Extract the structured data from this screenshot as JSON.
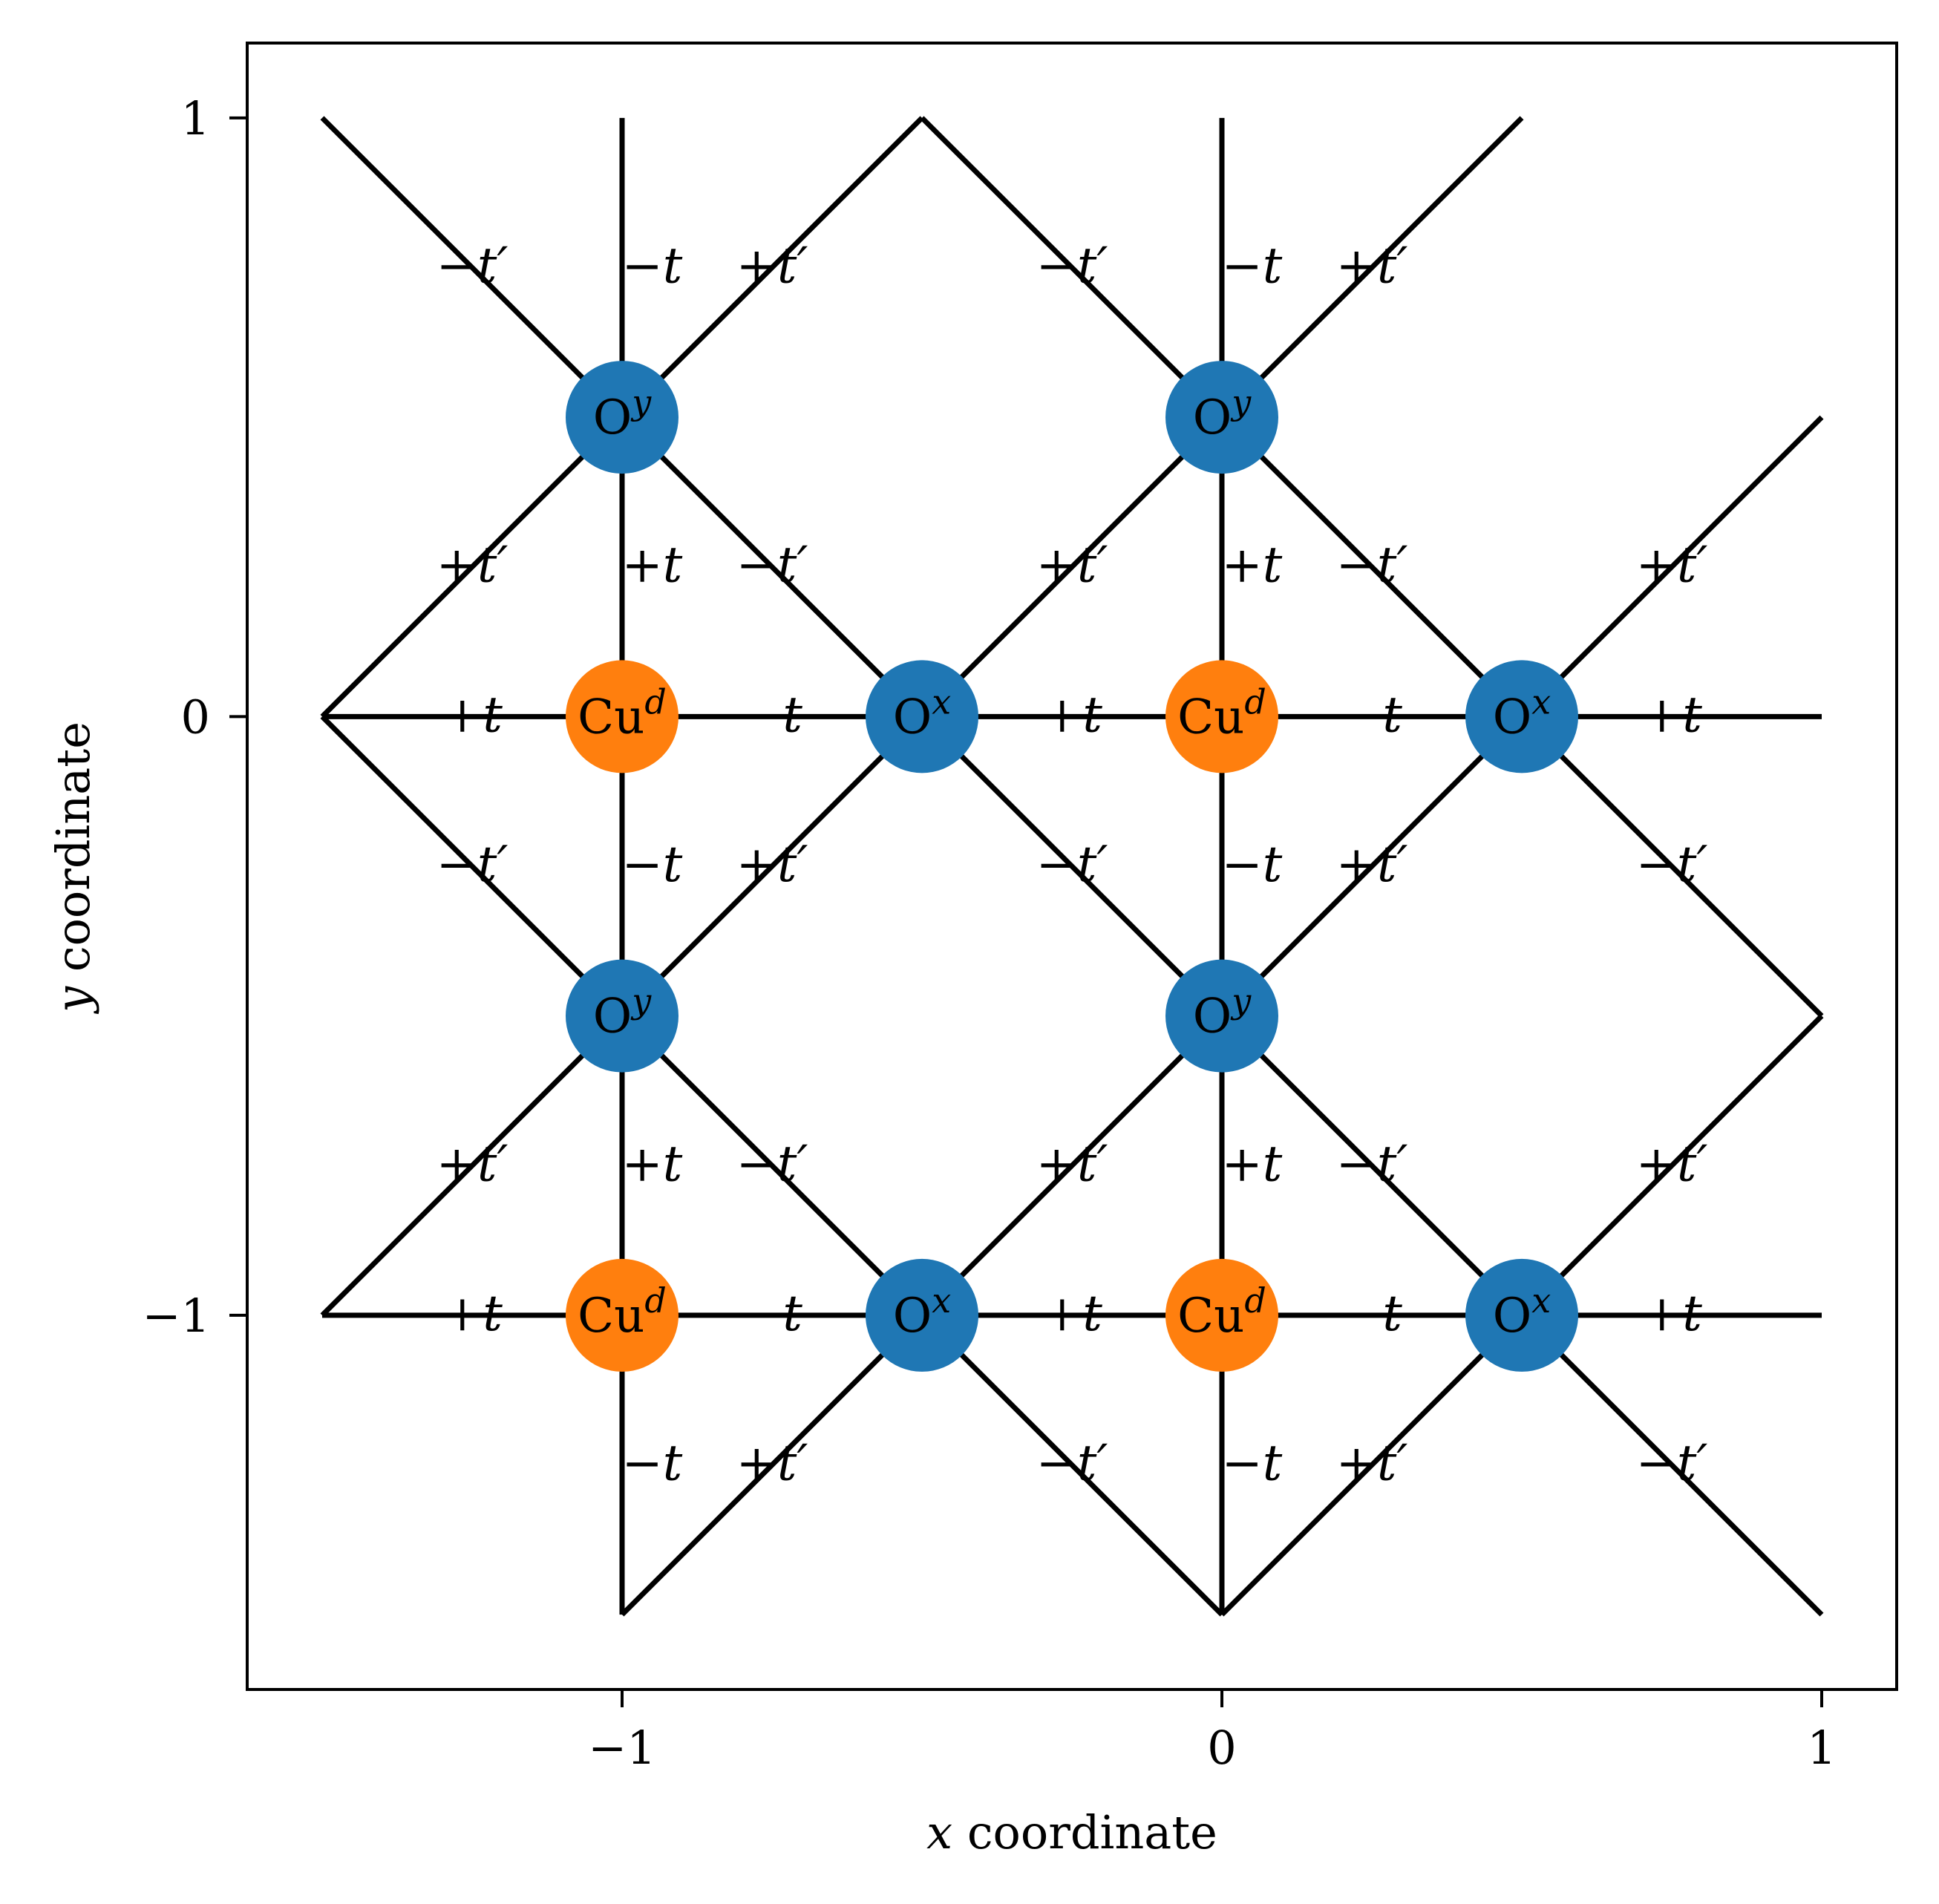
{
  "chart_data": {
    "type": "diagram",
    "xlabel_var": "x",
    "xlabel_text": " coordinate",
    "ylabel_var": "y",
    "ylabel_text": " coordinate",
    "xlim": [
      -1.625,
      1.125
    ],
    "ylim": [
      -1.625,
      1.125
    ],
    "xticks": [
      {
        "value": -1,
        "label": "−1"
      },
      {
        "value": 0,
        "label": "0"
      },
      {
        "value": 1,
        "label": "1"
      }
    ],
    "yticks": [
      {
        "value": 1,
        "label": "1"
      },
      {
        "value": 0,
        "label": "0"
      },
      {
        "value": -1,
        "label": "−1"
      }
    ],
    "line_color": "#000000",
    "node_colors": {
      "Cu": "#ff7f0e",
      "O": "#1f77b4"
    },
    "bonds": [
      [
        [
          -1.5,
          1.0
        ],
        [
          -1.0,
          0.5
        ]
      ],
      [
        [
          -1.0,
          1.0
        ],
        [
          -1.0,
          -1.5
        ]
      ],
      [
        [
          -1.0,
          0.5
        ],
        [
          -0.5,
          1.0
        ]
      ],
      [
        [
          -0.5,
          1.0
        ],
        [
          0.0,
          0.5
        ]
      ],
      [
        [
          0.0,
          1.0
        ],
        [
          0.0,
          -1.5
        ]
      ],
      [
        [
          0.0,
          0.5
        ],
        [
          0.5,
          1.0
        ]
      ],
      [
        [
          -1.5,
          0.0
        ],
        [
          1.0,
          0.0
        ]
      ],
      [
        [
          -1.5,
          -1.0
        ],
        [
          1.0,
          -1.0
        ]
      ],
      [
        [
          -1.5,
          0.0
        ],
        [
          -1.0,
          0.5
        ]
      ],
      [
        [
          -1.0,
          0.5
        ],
        [
          -0.5,
          0.0
        ]
      ],
      [
        [
          -0.5,
          0.0
        ],
        [
          0.0,
          0.5
        ]
      ],
      [
        [
          0.0,
          0.5
        ],
        [
          0.5,
          0.0
        ]
      ],
      [
        [
          0.5,
          0.0
        ],
        [
          1.0,
          0.5
        ]
      ],
      [
        [
          -1.5,
          0.0
        ],
        [
          -1.0,
          -0.5
        ]
      ],
      [
        [
          -1.0,
          -0.5
        ],
        [
          -0.5,
          0.0
        ]
      ],
      [
        [
          -0.5,
          0.0
        ],
        [
          0.0,
          -0.5
        ]
      ],
      [
        [
          0.0,
          -0.5
        ],
        [
          0.5,
          0.0
        ]
      ],
      [
        [
          0.5,
          0.0
        ],
        [
          1.0,
          -0.5
        ]
      ],
      [
        [
          -1.5,
          -1.0
        ],
        [
          -1.0,
          -0.5
        ]
      ],
      [
        [
          -1.0,
          -0.5
        ],
        [
          -0.5,
          -1.0
        ]
      ],
      [
        [
          -0.5,
          -1.0
        ],
        [
          0.0,
          -0.5
        ]
      ],
      [
        [
          0.0,
          -0.5
        ],
        [
          0.5,
          -1.0
        ]
      ],
      [
        [
          0.5,
          -1.0
        ],
        [
          1.0,
          -0.5
        ]
      ],
      [
        [
          -1.0,
          -1.5
        ],
        [
          -0.5,
          -1.0
        ]
      ],
      [
        [
          -0.5,
          -1.0
        ],
        [
          0.0,
          -1.5
        ]
      ],
      [
        [
          0.0,
          -1.5
        ],
        [
          0.5,
          -1.0
        ]
      ],
      [
        [
          0.5,
          -1.0
        ],
        [
          1.0,
          -1.5
        ]
      ]
    ],
    "nodes": [
      {
        "x": -1.0,
        "y": 0.5,
        "kind": "O",
        "base": "O",
        "sup": "y"
      },
      {
        "x": 0.0,
        "y": 0.5,
        "kind": "O",
        "base": "O",
        "sup": "y"
      },
      {
        "x": -1.0,
        "y": 0.0,
        "kind": "Cu",
        "base": "Cu",
        "sup": "d"
      },
      {
        "x": -0.5,
        "y": 0.0,
        "kind": "O",
        "base": "O",
        "sup": "x"
      },
      {
        "x": 0.0,
        "y": 0.0,
        "kind": "Cu",
        "base": "Cu",
        "sup": "d"
      },
      {
        "x": 0.5,
        "y": 0.0,
        "kind": "O",
        "base": "O",
        "sup": "x"
      },
      {
        "x": -1.0,
        "y": -0.5,
        "kind": "O",
        "base": "O",
        "sup": "y"
      },
      {
        "x": 0.0,
        "y": -0.5,
        "kind": "O",
        "base": "O",
        "sup": "y"
      },
      {
        "x": -1.0,
        "y": -1.0,
        "kind": "Cu",
        "base": "Cu",
        "sup": "d"
      },
      {
        "x": -0.5,
        "y": -1.0,
        "kind": "O",
        "base": "O",
        "sup": "x"
      },
      {
        "x": 0.0,
        "y": -1.0,
        "kind": "Cu",
        "base": "Cu",
        "sup": "d"
      },
      {
        "x": 0.5,
        "y": -1.0,
        "kind": "O",
        "base": "O",
        "sup": "x"
      }
    ],
    "hopping_labels": [
      {
        "x": -1.25,
        "y": 0.75,
        "sign": "−",
        "sym": "t′"
      },
      {
        "x": -0.95,
        "y": 0.75,
        "sign": "−",
        "sym": "t"
      },
      {
        "x": -0.75,
        "y": 0.75,
        "sign": "+",
        "sym": "t′"
      },
      {
        "x": -0.25,
        "y": 0.75,
        "sign": "−",
        "sym": "t′"
      },
      {
        "x": 0.05,
        "y": 0.75,
        "sign": "−",
        "sym": "t"
      },
      {
        "x": 0.25,
        "y": 0.75,
        "sign": "+",
        "sym": "t′"
      },
      {
        "x": -1.25,
        "y": 0.25,
        "sign": "+",
        "sym": "t′"
      },
      {
        "x": -0.95,
        "y": 0.25,
        "sign": "+",
        "sym": "t"
      },
      {
        "x": -0.75,
        "y": 0.25,
        "sign": "−",
        "sym": "t′"
      },
      {
        "x": -0.25,
        "y": 0.25,
        "sign": "+",
        "sym": "t′"
      },
      {
        "x": 0.05,
        "y": 0.25,
        "sign": "+",
        "sym": "t"
      },
      {
        "x": 0.25,
        "y": 0.25,
        "sign": "−",
        "sym": "t′"
      },
      {
        "x": 0.75,
        "y": 0.25,
        "sign": "+",
        "sym": "t′"
      },
      {
        "x": -1.25,
        "y": 0.0,
        "sign": "+",
        "sym": "t"
      },
      {
        "x": -0.75,
        "y": 0.0,
        "sign": "−",
        "sym": "t"
      },
      {
        "x": -0.25,
        "y": 0.0,
        "sign": "+",
        "sym": "t"
      },
      {
        "x": 0.25,
        "y": 0.0,
        "sign": "−",
        "sym": "t"
      },
      {
        "x": 0.75,
        "y": 0.0,
        "sign": "+",
        "sym": "t"
      },
      {
        "x": -1.25,
        "y": -0.25,
        "sign": "−",
        "sym": "t′"
      },
      {
        "x": -0.95,
        "y": -0.25,
        "sign": "−",
        "sym": "t"
      },
      {
        "x": -0.75,
        "y": -0.25,
        "sign": "+",
        "sym": "t′"
      },
      {
        "x": -0.25,
        "y": -0.25,
        "sign": "−",
        "sym": "t′"
      },
      {
        "x": 0.05,
        "y": -0.25,
        "sign": "−",
        "sym": "t"
      },
      {
        "x": 0.25,
        "y": -0.25,
        "sign": "+",
        "sym": "t′"
      },
      {
        "x": 0.75,
        "y": -0.25,
        "sign": "−",
        "sym": "t′"
      },
      {
        "x": -1.25,
        "y": -0.75,
        "sign": "+",
        "sym": "t′"
      },
      {
        "x": -0.95,
        "y": -0.75,
        "sign": "+",
        "sym": "t"
      },
      {
        "x": -0.75,
        "y": -0.75,
        "sign": "−",
        "sym": "t′"
      },
      {
        "x": -0.25,
        "y": -0.75,
        "sign": "+",
        "sym": "t′"
      },
      {
        "x": 0.05,
        "y": -0.75,
        "sign": "+",
        "sym": "t"
      },
      {
        "x": 0.25,
        "y": -0.75,
        "sign": "−",
        "sym": "t′"
      },
      {
        "x": 0.75,
        "y": -0.75,
        "sign": "+",
        "sym": "t′"
      },
      {
        "x": -1.25,
        "y": -1.0,
        "sign": "+",
        "sym": "t"
      },
      {
        "x": -0.75,
        "y": -1.0,
        "sign": "−",
        "sym": "t"
      },
      {
        "x": -0.25,
        "y": -1.0,
        "sign": "+",
        "sym": "t"
      },
      {
        "x": 0.25,
        "y": -1.0,
        "sign": "−",
        "sym": "t"
      },
      {
        "x": 0.75,
        "y": -1.0,
        "sign": "+",
        "sym": "t"
      },
      {
        "x": -0.95,
        "y": -1.25,
        "sign": "−",
        "sym": "t"
      },
      {
        "x": -0.75,
        "y": -1.25,
        "sign": "+",
        "sym": "t′"
      },
      {
        "x": -0.25,
        "y": -1.25,
        "sign": "−",
        "sym": "t′"
      },
      {
        "x": 0.05,
        "y": -1.25,
        "sign": "−",
        "sym": "t"
      },
      {
        "x": 0.25,
        "y": -1.25,
        "sign": "+",
        "sym": "t′"
      },
      {
        "x": 0.75,
        "y": -1.25,
        "sign": "−",
        "sym": "t′"
      }
    ]
  }
}
